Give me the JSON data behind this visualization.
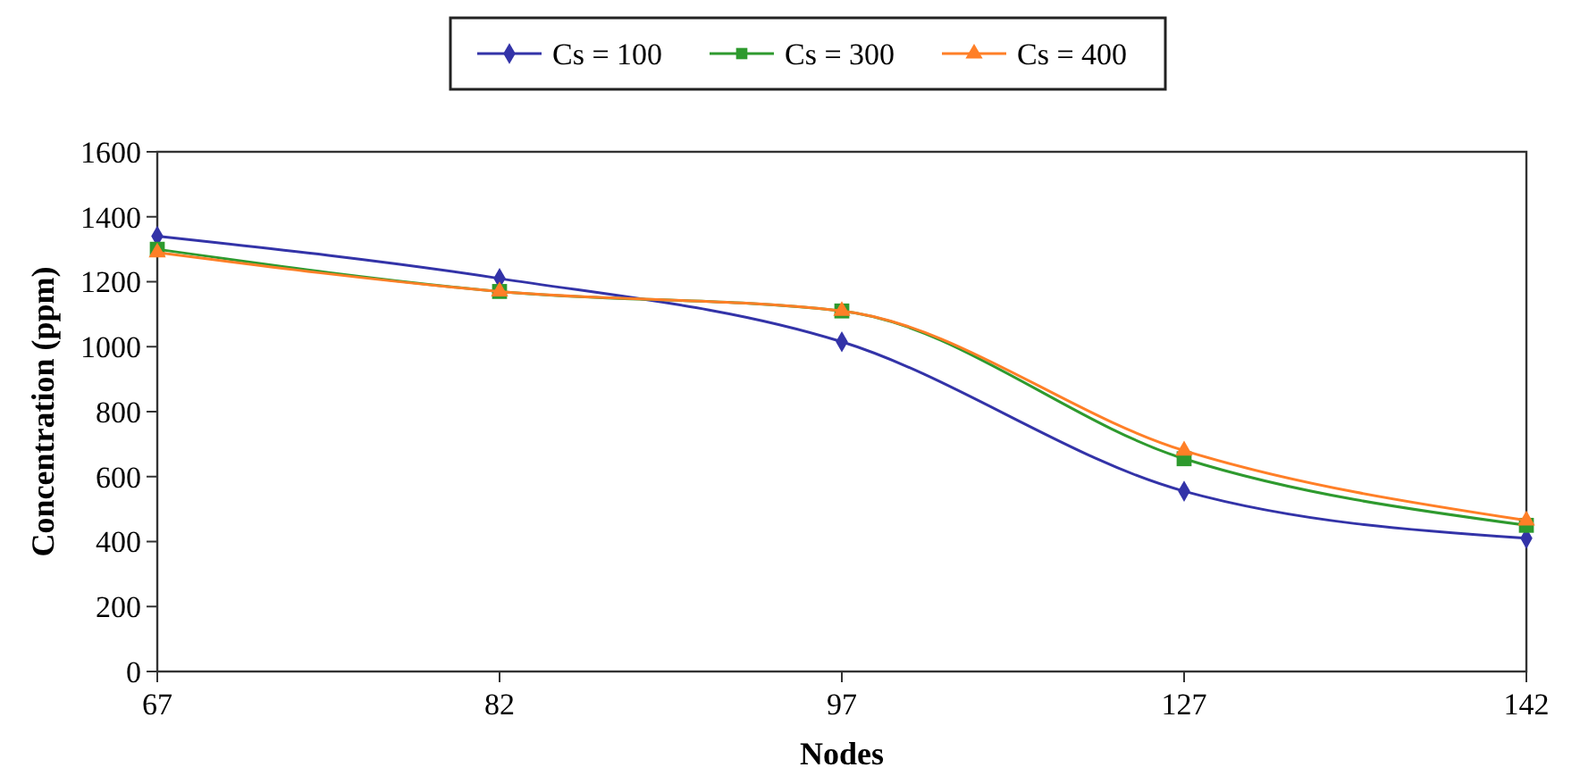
{
  "chart_data": {
    "type": "line",
    "xlabel": "Nodes",
    "ylabel": "Concentration (ppm)",
    "categories": [
      "67",
      "82",
      "97",
      "127",
      "142"
    ],
    "series": [
      {
        "name": "Cs = 100",
        "color": "#3333a8",
        "marker": "diamond",
        "values": [
          1340,
          1210,
          1015,
          555,
          410
        ]
      },
      {
        "name": "Cs = 300",
        "color": "#2e9a2e",
        "marker": "square",
        "values": [
          1300,
          1170,
          1110,
          655,
          450
        ]
      },
      {
        "name": "Cs = 400",
        "color": "#ff7f27",
        "marker": "triangle",
        "values": [
          1290,
          1170,
          1110,
          680,
          465
        ]
      }
    ],
    "ylim": [
      0,
      1600
    ],
    "yticks": [
      0,
      200,
      400,
      600,
      800,
      1000,
      1200,
      1400,
      1600
    ],
    "grid": false,
    "legend": "top"
  }
}
